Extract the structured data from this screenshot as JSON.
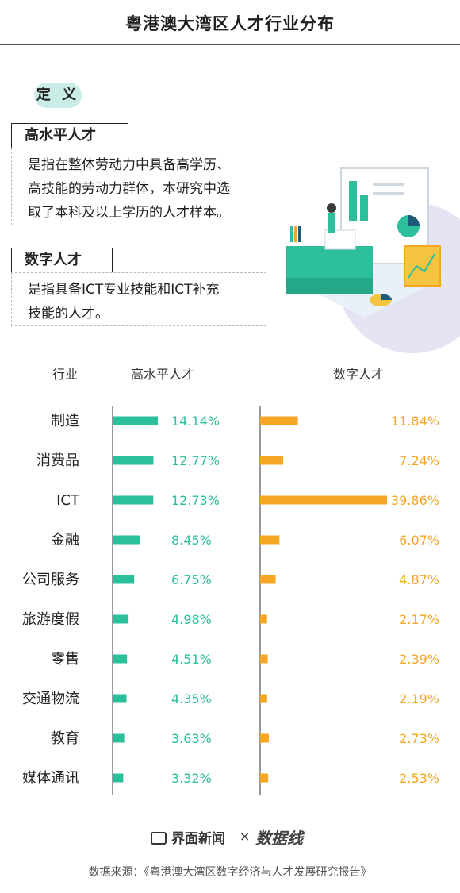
{
  "title": "粤港澳大湾区人才行业分布",
  "definition": {
    "tag": "定 义",
    "terms": [
      {
        "name": "高水平人才",
        "lines": [
          "是指在整体劳动力中具备高学历、",
          "高技能的劳动力群体，本研究中选",
          "取了本科及以上学历的人才样本。"
        ]
      },
      {
        "name": "数字人才",
        "lines": [
          "是指具备ICT专业技能和ICT补充",
          "技能的人才。"
        ]
      }
    ]
  },
  "chart_data": {
    "type": "bar",
    "orientation": "horizontal",
    "category_header": "行业",
    "categories": [
      "制造",
      "消费品",
      "ICT",
      "金融",
      "公司服务",
      "旅游度假",
      "零售",
      "交通物流",
      "教育",
      "媒体通讯"
    ],
    "series": [
      {
        "name": "高水平人才",
        "color": "#2dbe9c",
        "values": [
          14.14,
          12.77,
          12.73,
          8.45,
          6.75,
          4.98,
          4.51,
          4.35,
          3.63,
          3.32
        ],
        "labels": [
          "14.14%",
          "12.77%",
          "12.73%",
          "8.45%",
          "6.75%",
          "4.98%",
          "4.51%",
          "4.35%",
          "3.63%",
          "3.32%"
        ]
      },
      {
        "name": "数字人才",
        "color": "#f5a623",
        "values": [
          11.84,
          7.24,
          39.86,
          6.07,
          4.87,
          2.17,
          2.39,
          2.19,
          2.73,
          2.53
        ],
        "labels": [
          "11.84%",
          "7.24%",
          "39.86%",
          "6.07%",
          "4.87%",
          "2.17%",
          "2.39%",
          "2.19%",
          "2.73%",
          "2.53%"
        ]
      }
    ]
  },
  "footer": {
    "brand": "界面新闻",
    "separator": "×",
    "partner_logo_text": "数据线",
    "source": "数据来源：《粤港澳大湾区数字经济与人才发展研究报告》"
  },
  "colors": {
    "accent_teal": "#2dbe9c",
    "accent_orange": "#f5a623",
    "tag_bg": "#c9ece6"
  }
}
